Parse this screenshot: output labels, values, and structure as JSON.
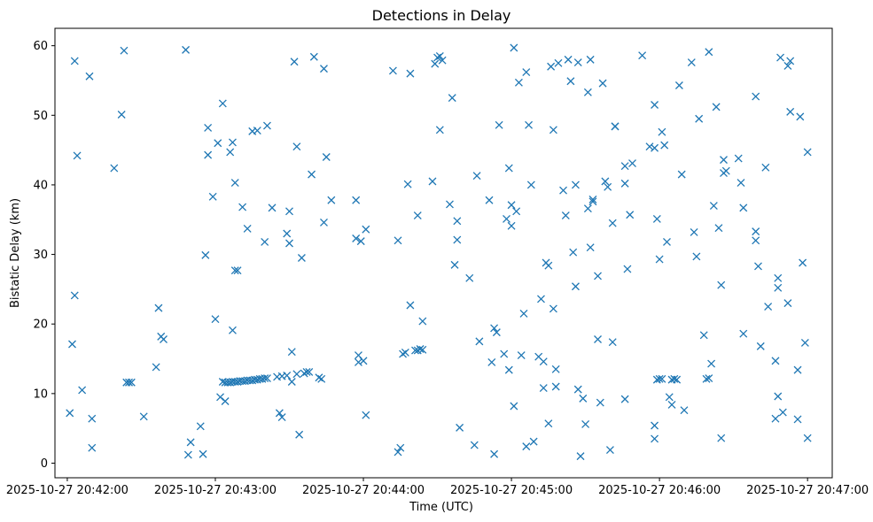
{
  "chart_data": {
    "type": "scatter",
    "title": "Detections in Delay",
    "xlabel": "Time (UTC)",
    "ylabel": "Bistatic Delay (km)",
    "marker": "x",
    "color": "#1f77b4",
    "x_unit": "seconds after 2025-10-27 20:42:00",
    "xlim": [
      -5,
      310
    ],
    "ylim": [
      -2.1,
      62.5
    ],
    "xticks": [
      0,
      60,
      120,
      180,
      240,
      300
    ],
    "xtick_labels": [
      "2025-10-27 20:42:00",
      "2025-10-27 20:43:00",
      "2025-10-27 20:44:00",
      "2025-10-27 20:45:00",
      "2025-10-27 20:46:00",
      "2025-10-27 20:47:00"
    ],
    "yticks": [
      0,
      10,
      20,
      30,
      40,
      50,
      60
    ],
    "ytick_labels": [
      "0",
      "10",
      "20",
      "30",
      "40",
      "50",
      "60"
    ],
    "points": [
      [
        1,
        7.2
      ],
      [
        2,
        17.1
      ],
      [
        3,
        24.1
      ],
      [
        3,
        57.8
      ],
      [
        4,
        44.2
      ],
      [
        6,
        10.5
      ],
      [
        9,
        55.6
      ],
      [
        10,
        6.4
      ],
      [
        10,
        2.2
      ],
      [
        19,
        42.4
      ],
      [
        22,
        50.1
      ],
      [
        23,
        59.3
      ],
      [
        24,
        11.6
      ],
      [
        25,
        11.6
      ],
      [
        26,
        11.6
      ],
      [
        31,
        6.7
      ],
      [
        36,
        13.8
      ],
      [
        37,
        22.3
      ],
      [
        38,
        18.2
      ],
      [
        39,
        17.8
      ],
      [
        48,
        59.4
      ],
      [
        49,
        1.2
      ],
      [
        50,
        3.0
      ],
      [
        54,
        5.3
      ],
      [
        55,
        1.3
      ],
      [
        56,
        29.9
      ],
      [
        57,
        48.2
      ],
      [
        57,
        44.3
      ],
      [
        59,
        38.3
      ],
      [
        60,
        20.7
      ],
      [
        61,
        46.0
      ],
      [
        62,
        9.5
      ],
      [
        63,
        51.7
      ],
      [
        63,
        11.7
      ],
      [
        64,
        8.9
      ],
      [
        64,
        11.6
      ],
      [
        65,
        11.6
      ],
      [
        66,
        44.7
      ],
      [
        66,
        11.6
      ],
      [
        67,
        11.7
      ],
      [
        67,
        19.1
      ],
      [
        67,
        46.1
      ],
      [
        68,
        11.7
      ],
      [
        68,
        27.7
      ],
      [
        68,
        40.3
      ],
      [
        69,
        11.7
      ],
      [
        69,
        27.7
      ],
      [
        70,
        11.8
      ],
      [
        71,
        36.8
      ],
      [
        71,
        11.8
      ],
      [
        72,
        11.8
      ],
      [
        73,
        11.9
      ],
      [
        73,
        33.7
      ],
      [
        74,
        11.9
      ],
      [
        75,
        11.9
      ],
      [
        75,
        47.7
      ],
      [
        76,
        12.0
      ],
      [
        77,
        47.8
      ],
      [
        77,
        12.0
      ],
      [
        78,
        12.1
      ],
      [
        79,
        12.1
      ],
      [
        80,
        31.8
      ],
      [
        80,
        12.2
      ],
      [
        81,
        48.5
      ],
      [
        81,
        12.2
      ],
      [
        83,
        36.7
      ],
      [
        85,
        12.4
      ],
      [
        86,
        7.2
      ],
      [
        87,
        6.6
      ],
      [
        87,
        12.5
      ],
      [
        89,
        33.0
      ],
      [
        89,
        12.6
      ],
      [
        90,
        31.6
      ],
      [
        90,
        36.2
      ],
      [
        91,
        16.0
      ],
      [
        91,
        11.7
      ],
      [
        92,
        57.7
      ],
      [
        93,
        12.8
      ],
      [
        93,
        45.5
      ],
      [
        94,
        4.1
      ],
      [
        95,
        29.5
      ],
      [
        96,
        12.9
      ],
      [
        97,
        13.1
      ],
      [
        98,
        13.1
      ],
      [
        99,
        41.5
      ],
      [
        100,
        58.4
      ],
      [
        102,
        12.3
      ],
      [
        103,
        12.1
      ],
      [
        104,
        34.6
      ],
      [
        104,
        56.7
      ],
      [
        105,
        44.0
      ],
      [
        107,
        37.8
      ],
      [
        117,
        37.8
      ],
      [
        117,
        32.3
      ],
      [
        118,
        15.5
      ],
      [
        118,
        14.5
      ],
      [
        119,
        31.9
      ],
      [
        120,
        14.7
      ],
      [
        121,
        33.6
      ],
      [
        121,
        6.9
      ],
      [
        132,
        56.4
      ],
      [
        134,
        32.0
      ],
      [
        134,
        1.6
      ],
      [
        135,
        2.2
      ],
      [
        136,
        15.7
      ],
      [
        137,
        15.9
      ],
      [
        138,
        40.1
      ],
      [
        139,
        22.7
      ],
      [
        139,
        56.0
      ],
      [
        141,
        16.2
      ],
      [
        142,
        16.2
      ],
      [
        142,
        35.6
      ],
      [
        143,
        16.4
      ],
      [
        144,
        16.3
      ],
      [
        144,
        20.4
      ],
      [
        148,
        40.5
      ],
      [
        149,
        57.4
      ],
      [
        150,
        58.3
      ],
      [
        151,
        47.9
      ],
      [
        151,
        58.5
      ],
      [
        152,
        57.9
      ],
      [
        155,
        37.2
      ],
      [
        156,
        52.5
      ],
      [
        157,
        28.5
      ],
      [
        158,
        34.8
      ],
      [
        158,
        32.1
      ],
      [
        159,
        5.1
      ],
      [
        163,
        26.6
      ],
      [
        165,
        2.6
      ],
      [
        166,
        41.3
      ],
      [
        167,
        17.5
      ],
      [
        171,
        37.8
      ],
      [
        172,
        14.5
      ],
      [
        173,
        1.3
      ],
      [
        173,
        19.4
      ],
      [
        174,
        18.8
      ],
      [
        175,
        48.6
      ],
      [
        177,
        15.7
      ],
      [
        178,
        35.1
      ],
      [
        179,
        42.4
      ],
      [
        179,
        13.4
      ],
      [
        180,
        34.1
      ],
      [
        180,
        37.1
      ],
      [
        181,
        8.2
      ],
      [
        181,
        59.7
      ],
      [
        182,
        36.2
      ],
      [
        183,
        54.7
      ],
      [
        184,
        15.5
      ],
      [
        185,
        21.5
      ],
      [
        186,
        56.2
      ],
      [
        186,
        2.4
      ],
      [
        187,
        48.6
      ],
      [
        188,
        40.0
      ],
      [
        189,
        3.1
      ],
      [
        191,
        15.3
      ],
      [
        192,
        23.6
      ],
      [
        193,
        10.8
      ],
      [
        193,
        14.6
      ],
      [
        194,
        28.8
      ],
      [
        195,
        28.4
      ],
      [
        195,
        5.7
      ],
      [
        196,
        57.0
      ],
      [
        197,
        22.2
      ],
      [
        197,
        47.9
      ],
      [
        198,
        13.5
      ],
      [
        198,
        11.0
      ],
      [
        199,
        57.5
      ],
      [
        201,
        39.2
      ],
      [
        202,
        35.6
      ],
      [
        203,
        58.0
      ],
      [
        204,
        54.9
      ],
      [
        205,
        30.3
      ],
      [
        206,
        25.4
      ],
      [
        206,
        40.0
      ],
      [
        207,
        57.6
      ],
      [
        207,
        10.6
      ],
      [
        208,
        1.0
      ],
      [
        209,
        9.3
      ],
      [
        210,
        5.6
      ],
      [
        211,
        53.3
      ],
      [
        211,
        36.6
      ],
      [
        212,
        31.0
      ],
      [
        212,
        58.0
      ],
      [
        213,
        37.6
      ],
      [
        213,
        37.9
      ],
      [
        215,
        26.9
      ],
      [
        215,
        17.8
      ],
      [
        216,
        8.7
      ],
      [
        217,
        54.6
      ],
      [
        218,
        40.5
      ],
      [
        219,
        39.7
      ],
      [
        220,
        1.9
      ],
      [
        221,
        34.5
      ],
      [
        221,
        17.4
      ],
      [
        222,
        48.4
      ],
      [
        222,
        48.4
      ],
      [
        226,
        42.7
      ],
      [
        226,
        40.2
      ],
      [
        226,
        9.2
      ],
      [
        227,
        27.9
      ],
      [
        228,
        35.7
      ],
      [
        229,
        43.1
      ],
      [
        233,
        58.6
      ],
      [
        236,
        45.5
      ],
      [
        238,
        51.5
      ],
      [
        238,
        5.4
      ],
      [
        238,
        3.5
      ],
      [
        238,
        45.3
      ],
      [
        239,
        12.0
      ],
      [
        239,
        35.1
      ],
      [
        240,
        12.1
      ],
      [
        240,
        29.3
      ],
      [
        241,
        47.6
      ],
      [
        241,
        12.1
      ],
      [
        242,
        45.7
      ],
      [
        243,
        31.8
      ],
      [
        244,
        9.5
      ],
      [
        245,
        8.4
      ],
      [
        245,
        12.0
      ],
      [
        246,
        12.1
      ],
      [
        247,
        12.0
      ],
      [
        248,
        54.3
      ],
      [
        249,
        41.5
      ],
      [
        250,
        7.6
      ],
      [
        253,
        57.6
      ],
      [
        254,
        33.2
      ],
      [
        255,
        29.7
      ],
      [
        256,
        49.5
      ],
      [
        258,
        18.4
      ],
      [
        259,
        12.1
      ],
      [
        260,
        12.2
      ],
      [
        260,
        59.1
      ],
      [
        261,
        14.3
      ],
      [
        262,
        37.0
      ],
      [
        263,
        51.2
      ],
      [
        264,
        33.8
      ],
      [
        265,
        25.6
      ],
      [
        265,
        3.6
      ],
      [
        266,
        43.6
      ],
      [
        266,
        41.7
      ],
      [
        267,
        42.0
      ],
      [
        272,
        43.8
      ],
      [
        273,
        40.3
      ],
      [
        274,
        36.7
      ],
      [
        274,
        18.6
      ],
      [
        279,
        52.7
      ],
      [
        279,
        33.3
      ],
      [
        279,
        32.0
      ],
      [
        280,
        28.3
      ],
      [
        281,
        16.8
      ],
      [
        283,
        42.5
      ],
      [
        284,
        22.5
      ],
      [
        287,
        14.7
      ],
      [
        287,
        6.4
      ],
      [
        288,
        26.6
      ],
      [
        288,
        25.2
      ],
      [
        288,
        9.6
      ],
      [
        289,
        58.3
      ],
      [
        290,
        7.3
      ],
      [
        292,
        57.1
      ],
      [
        292,
        23.0
      ],
      [
        293,
        57.8
      ],
      [
        293,
        50.5
      ],
      [
        296,
        6.3
      ],
      [
        296,
        13.4
      ],
      [
        297,
        49.8
      ],
      [
        298,
        28.8
      ],
      [
        299,
        17.3
      ],
      [
        300,
        44.7
      ],
      [
        300,
        3.6
      ]
    ]
  }
}
